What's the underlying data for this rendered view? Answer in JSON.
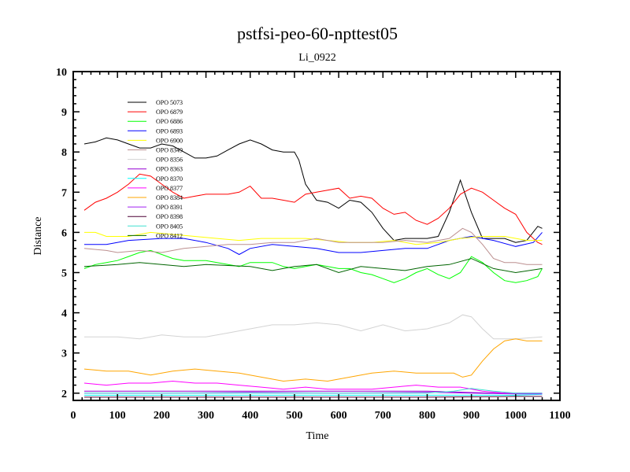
{
  "chart_data": {
    "type": "line",
    "title": "pstfsi-peo-60-npttest05",
    "subtitle": "Li_0922",
    "xlabel": "Time",
    "ylabel": "Distance",
    "xlim": [
      0,
      1100
    ],
    "ylim": [
      1.82,
      10
    ],
    "xticks": [
      0,
      100,
      200,
      300,
      400,
      500,
      600,
      700,
      800,
      900,
      1000,
      1100
    ],
    "yticks": [
      2,
      3,
      4,
      5,
      6,
      7,
      8,
      9,
      10
    ],
    "grid": false,
    "legend_position": "top-left",
    "series": [
      {
        "name": "OPO 5073",
        "color": "#000000",
        "x": [
          25,
          50,
          75,
          100,
          125,
          150,
          175,
          200,
          225,
          250,
          275,
          300,
          325,
          350,
          375,
          400,
          425,
          450,
          475,
          500,
          510,
          525,
          550,
          575,
          600,
          625,
          650,
          675,
          700,
          725,
          750,
          775,
          800,
          825,
          850,
          875,
          900,
          925,
          950,
          975,
          1000,
          1025,
          1050,
          1060
        ],
        "y": [
          8.2,
          8.25,
          8.35,
          8.3,
          8.2,
          8.1,
          8.1,
          8.2,
          8.15,
          8.0,
          7.85,
          7.85,
          7.9,
          8.05,
          8.2,
          8.3,
          8.2,
          8.05,
          8.0,
          8.0,
          7.8,
          7.2,
          6.8,
          6.75,
          6.6,
          6.8,
          6.75,
          6.5,
          6.1,
          5.8,
          5.85,
          5.85,
          5.85,
          5.9,
          6.5,
          7.3,
          6.5,
          5.85,
          5.85,
          5.85,
          5.75,
          5.8,
          6.15,
          6.1
        ]
      },
      {
        "name": "OPO 6879",
        "color": "#ff0000",
        "x": [
          25,
          50,
          75,
          100,
          125,
          150,
          175,
          200,
          225,
          250,
          275,
          300,
          325,
          350,
          375,
          400,
          425,
          450,
          475,
          500,
          525,
          550,
          575,
          600,
          625,
          650,
          675,
          700,
          725,
          750,
          775,
          800,
          825,
          850,
          875,
          900,
          925,
          950,
          975,
          1000,
          1025,
          1050,
          1060
        ],
        "y": [
          6.55,
          6.75,
          6.85,
          7.0,
          7.2,
          7.45,
          7.4,
          7.2,
          7.0,
          6.85,
          6.9,
          6.95,
          6.95,
          6.95,
          7.0,
          7.15,
          6.85,
          6.85,
          6.8,
          6.75,
          6.95,
          7.0,
          7.05,
          7.1,
          6.85,
          6.9,
          6.85,
          6.6,
          6.45,
          6.5,
          6.3,
          6.2,
          6.35,
          6.6,
          6.95,
          7.1,
          7.0,
          6.8,
          6.6,
          6.45,
          6.0,
          5.75,
          5.7
        ]
      },
      {
        "name": "OPO 6886",
        "color": "#00ff00",
        "x": [
          25,
          50,
          75,
          100,
          125,
          150,
          175,
          200,
          225,
          250,
          275,
          300,
          325,
          350,
          375,
          400,
          425,
          450,
          475,
          500,
          525,
          550,
          575,
          600,
          625,
          650,
          675,
          700,
          725,
          750,
          775,
          800,
          825,
          850,
          875,
          900,
          925,
          950,
          975,
          1000,
          1025,
          1050,
          1060
        ],
        "y": [
          5.1,
          5.2,
          5.25,
          5.3,
          5.4,
          5.5,
          5.55,
          5.45,
          5.35,
          5.3,
          5.3,
          5.3,
          5.25,
          5.2,
          5.15,
          5.25,
          5.25,
          5.25,
          5.15,
          5.1,
          5.15,
          5.2,
          5.15,
          5.1,
          5.1,
          5.0,
          4.95,
          4.85,
          4.75,
          4.85,
          5.0,
          5.1,
          4.95,
          4.85,
          5.0,
          5.4,
          5.25,
          5.0,
          4.8,
          4.75,
          4.8,
          4.9,
          5.1
        ]
      },
      {
        "name": "OPO 6893",
        "color": "#0000ff",
        "x": [
          25,
          75,
          125,
          200,
          250,
          300,
          350,
          375,
          400,
          450,
          500,
          550,
          600,
          650,
          700,
          750,
          800,
          850,
          900,
          950,
          1000,
          1040,
          1060
        ],
        "y": [
          5.7,
          5.7,
          5.8,
          5.85,
          5.85,
          5.75,
          5.6,
          5.45,
          5.6,
          5.7,
          5.65,
          5.6,
          5.5,
          5.5,
          5.55,
          5.6,
          5.6,
          5.8,
          5.9,
          5.8,
          5.65,
          5.75,
          6.0
        ]
      },
      {
        "name": "OPO 6900",
        "color": "#ffff00",
        "x": [
          25,
          50,
          75,
          125,
          175,
          225,
          275,
          325,
          375,
          425,
          475,
          525,
          575,
          625,
          675,
          725,
          775,
          825,
          875,
          925,
          975,
          1025,
          1060
        ],
        "y": [
          6.0,
          6.0,
          5.9,
          5.9,
          6.0,
          5.95,
          5.9,
          5.85,
          5.8,
          5.85,
          5.85,
          5.85,
          5.8,
          5.75,
          5.75,
          5.8,
          5.7,
          5.75,
          5.85,
          5.9,
          5.9,
          5.8,
          5.8
        ]
      },
      {
        "name": "OPO 8349",
        "color": "#bc8f8f",
        "x": [
          25,
          75,
          100,
          150,
          200,
          250,
          300,
          350,
          400,
          450,
          500,
          550,
          600,
          650,
          700,
          750,
          800,
          850,
          880,
          900,
          925,
          950,
          975,
          1000,
          1025,
          1060
        ],
        "y": [
          5.6,
          5.55,
          5.5,
          5.55,
          5.5,
          5.6,
          5.65,
          5.7,
          5.7,
          5.75,
          5.75,
          5.85,
          5.75,
          5.75,
          5.75,
          5.8,
          5.75,
          5.85,
          6.1,
          6.0,
          5.7,
          5.35,
          5.25,
          5.25,
          5.2,
          5.2
        ]
      },
      {
        "name": "OPO 8356",
        "color": "#d3d3d3",
        "x": [
          25,
          100,
          150,
          200,
          250,
          300,
          350,
          400,
          450,
          500,
          550,
          600,
          650,
          700,
          750,
          800,
          850,
          880,
          900,
          925,
          950,
          975,
          1000,
          1060
        ],
        "y": [
          3.4,
          3.4,
          3.35,
          3.45,
          3.4,
          3.4,
          3.5,
          3.6,
          3.7,
          3.7,
          3.75,
          3.7,
          3.55,
          3.7,
          3.55,
          3.6,
          3.75,
          3.95,
          3.9,
          3.6,
          3.35,
          3.35,
          3.35,
          3.4
        ]
      },
      {
        "name": "OPO 8363",
        "color": "#9400d3",
        "x": [
          25,
          200,
          400,
          600,
          800,
          950,
          1060
        ],
        "y": [
          2.05,
          2.05,
          2.05,
          2.05,
          2.05,
          2.0,
          2.0
        ]
      },
      {
        "name": "OPO 8370",
        "color": "#00ffff",
        "x": [
          25,
          200,
          400,
          600,
          800,
          1000,
          1060
        ],
        "y": [
          1.95,
          1.95,
          1.95,
          1.95,
          1.95,
          1.95,
          1.97
        ]
      },
      {
        "name": "OPO 8377",
        "color": "#ff00ff",
        "x": [
          25,
          75,
          125,
          175,
          225,
          275,
          325,
          375,
          425,
          475,
          525,
          575,
          625,
          675,
          725,
          775,
          825,
          875,
          925,
          975,
          1025,
          1060
        ],
        "y": [
          2.25,
          2.2,
          2.25,
          2.25,
          2.3,
          2.25,
          2.25,
          2.2,
          2.15,
          2.1,
          2.15,
          2.1,
          2.1,
          2.1,
          2.15,
          2.2,
          2.15,
          2.15,
          2.05,
          2.0,
          2.0,
          2.0
        ]
      },
      {
        "name": "OPO 8384",
        "color": "#ffa500",
        "x": [
          25,
          75,
          125,
          175,
          225,
          275,
          325,
          375,
          425,
          475,
          525,
          575,
          625,
          675,
          725,
          775,
          825,
          860,
          880,
          900,
          925,
          950,
          975,
          1000,
          1025,
          1060
        ],
        "y": [
          2.6,
          2.55,
          2.55,
          2.45,
          2.55,
          2.6,
          2.55,
          2.5,
          2.4,
          2.3,
          2.35,
          2.3,
          2.4,
          2.5,
          2.55,
          2.5,
          2.5,
          2.5,
          2.4,
          2.45,
          2.8,
          3.1,
          3.3,
          3.35,
          3.3,
          3.3
        ]
      },
      {
        "name": "OPO 8391",
        "color": "#a020f0",
        "x": [
          25,
          200,
          400,
          600,
          800,
          1000,
          1060
        ],
        "y": [
          2.0,
          2.0,
          2.02,
          2.0,
          2.02,
          1.98,
          1.98
        ]
      },
      {
        "name": "OPO 8398",
        "color": "#4b0035",
        "x": [
          25,
          200,
          400,
          600,
          800,
          1000,
          1060
        ],
        "y": [
          1.9,
          1.9,
          1.9,
          1.9,
          1.9,
          1.92,
          1.92
        ]
      },
      {
        "name": "OPO 8405",
        "color": "#40e0d0",
        "x": [
          25,
          200,
          400,
          600,
          800,
          860,
          900,
          950,
          1000,
          1060
        ],
        "y": [
          2.0,
          2.0,
          2.0,
          2.0,
          2.0,
          2.05,
          2.12,
          2.05,
          2.0,
          2.0
        ]
      },
      {
        "name": "OPO 8412",
        "color": "#006400",
        "x": [
          25,
          100,
          150,
          200,
          250,
          300,
          400,
          450,
          500,
          550,
          600,
          650,
          700,
          750,
          800,
          850,
          900,
          950,
          1000,
          1060
        ],
        "y": [
          5.15,
          5.2,
          5.25,
          5.2,
          5.15,
          5.2,
          5.15,
          5.05,
          5.15,
          5.2,
          5.0,
          5.15,
          5.1,
          5.05,
          5.15,
          5.2,
          5.35,
          5.1,
          5.0,
          5.1
        ]
      }
    ]
  }
}
